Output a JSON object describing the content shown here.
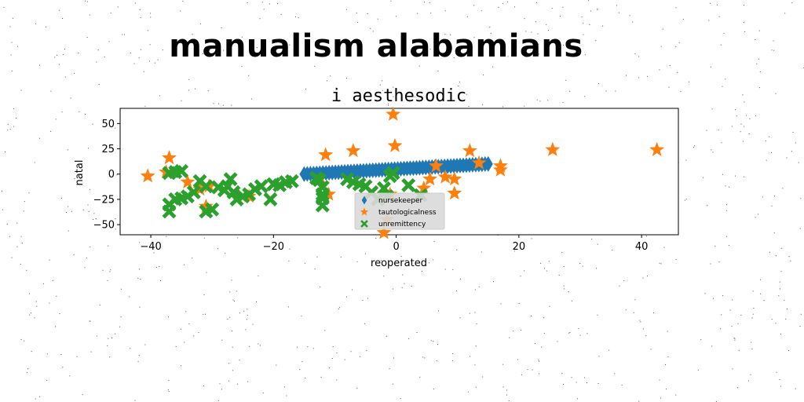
{
  "chart_data": {
    "type": "scatter",
    "suptitle": "manualism alabamians",
    "title": "i aesthesodic",
    "xlabel": "reoperated",
    "ylabel": "natal",
    "xlim": [
      -45,
      46
    ],
    "ylim": [
      -60,
      65
    ],
    "xticks": [
      -40,
      -20,
      0,
      20,
      40
    ],
    "yticks": [
      -50,
      -25,
      0,
      25,
      50
    ],
    "grid": false,
    "legend_position": "lower center",
    "series": [
      {
        "name": "nursekeeper",
        "marker": "diamond",
        "color": "#1f77b4",
        "x_range": [
          -15,
          15
        ],
        "y_range": [
          0,
          10
        ],
        "count": 60
      },
      {
        "name": "tautologicalness",
        "marker": "star",
        "color": "#ff7f0e",
        "points": [
          [
            -40.5,
            -2
          ],
          [
            -37,
            16
          ],
          [
            -37.5,
            2
          ],
          [
            -34,
            -8
          ],
          [
            -32,
            -15
          ],
          [
            -30.5,
            -12
          ],
          [
            -31,
            -32
          ],
          [
            -24,
            -22
          ],
          [
            -11.5,
            19
          ],
          [
            -7,
            23
          ],
          [
            -12,
            -10
          ],
          [
            -11,
            -20
          ],
          [
            -0.5,
            59
          ],
          [
            -0.2,
            28
          ],
          [
            -1,
            -20
          ],
          [
            -2,
            -58
          ],
          [
            -1.5,
            -45
          ],
          [
            4.5,
            -14
          ],
          [
            5.5,
            -5
          ],
          [
            6.5,
            8
          ],
          [
            8,
            -3
          ],
          [
            9.5,
            -5
          ],
          [
            9.5,
            -19
          ],
          [
            12,
            23
          ],
          [
            13.5,
            11
          ],
          [
            17,
            8
          ],
          [
            17,
            4
          ],
          [
            25.5,
            24
          ],
          [
            42.5,
            24
          ]
        ]
      },
      {
        "name": "unremittency",
        "marker": "x",
        "color": "#2ca02c",
        "points": [
          [
            -37,
            -37
          ],
          [
            -37,
            -30
          ],
          [
            -36,
            -25
          ],
          [
            -37,
            1
          ],
          [
            -36,
            2
          ],
          [
            -35,
            3
          ],
          [
            -35,
            -24
          ],
          [
            -34,
            -22
          ],
          [
            -33,
            -18
          ],
          [
            -32,
            -7
          ],
          [
            -31,
            -12
          ],
          [
            -31,
            -37
          ],
          [
            -30,
            -35
          ],
          [
            -29,
            -13
          ],
          [
            -28,
            -16
          ],
          [
            -27.5,
            -12
          ],
          [
            -27,
            -5
          ],
          [
            -26.5,
            -18
          ],
          [
            -26,
            -25
          ],
          [
            -25,
            -22
          ],
          [
            -24,
            -20
          ],
          [
            -23,
            -15
          ],
          [
            -22,
            -12
          ],
          [
            -20.5,
            -25
          ],
          [
            -20,
            -10
          ],
          [
            -19,
            -11
          ],
          [
            -18,
            -8
          ],
          [
            -17,
            -7
          ],
          [
            -13,
            -4
          ],
          [
            -12.5,
            -6
          ],
          [
            -12,
            -13
          ],
          [
            -12,
            -20
          ],
          [
            -12,
            -24
          ],
          [
            -12,
            -31
          ],
          [
            -8,
            -5
          ],
          [
            -7,
            -8
          ],
          [
            -6,
            -10
          ],
          [
            -5,
            -12
          ],
          [
            -4,
            -18
          ],
          [
            -3,
            -25
          ],
          [
            -2,
            -14
          ],
          [
            -1.5,
            -22
          ],
          [
            -1,
            -2
          ],
          [
            -0.5,
            1
          ],
          [
            2,
            -11
          ],
          [
            4,
            -21
          ]
        ]
      }
    ]
  }
}
